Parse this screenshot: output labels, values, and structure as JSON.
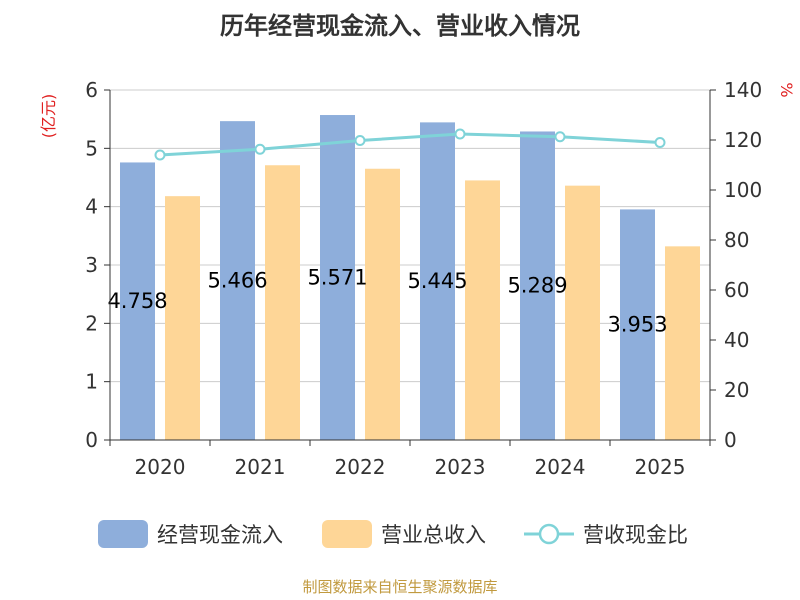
{
  "title": "历年经营现金流入、营业收入情况",
  "footer": "制图数据来自恒生聚源数据库",
  "left_unit": "(亿元)",
  "right_unit": "%",
  "colors": {
    "cash_inflow": "#8eaedb",
    "revenue": "#fed697",
    "ratio": "#7fd3d8",
    "axis": "#333333",
    "grid": "#cccccc"
  },
  "legend": [
    {
      "label": "经营现金流入",
      "icon": "rounded-rect-swatch"
    },
    {
      "label": "营业总收入",
      "icon": "rounded-rect-swatch"
    },
    {
      "label": "营收现金比",
      "icon": "line-circle-marker"
    }
  ],
  "chart_data": {
    "type": "bar",
    "title": "历年经营现金流入、营业收入情况",
    "categories": [
      "2020",
      "2021",
      "2022",
      "2023",
      "2024",
      "2025"
    ],
    "series": [
      {
        "name": "经营现金流入",
        "type": "bar",
        "axis": "left",
        "values": [
          4.758,
          5.466,
          5.571,
          5.445,
          5.289,
          3.953
        ],
        "labels": [
          "4.758",
          "5.466",
          "5.571",
          "5.445",
          "5.289",
          "3.953"
        ]
      },
      {
        "name": "营业总收入",
        "type": "bar",
        "axis": "left",
        "values": [
          4.18,
          4.71,
          4.65,
          4.45,
          4.36,
          3.32
        ]
      },
      {
        "name": "营收现金比",
        "type": "line",
        "axis": "right",
        "values": [
          114,
          116.3,
          119.8,
          122.4,
          121.3,
          119.0
        ]
      }
    ],
    "y_left": {
      "label": "(亿元)",
      "ylim": [
        0,
        6
      ],
      "ticks": [
        "0",
        "1",
        "2",
        "3",
        "4",
        "5",
        "6"
      ]
    },
    "y_right": {
      "label": "%",
      "ylim": [
        0,
        140
      ],
      "ticks": [
        "0",
        "20",
        "40",
        "60",
        "80",
        "100",
        "120",
        "140"
      ]
    },
    "grid": true,
    "legend_position": "bottom"
  }
}
